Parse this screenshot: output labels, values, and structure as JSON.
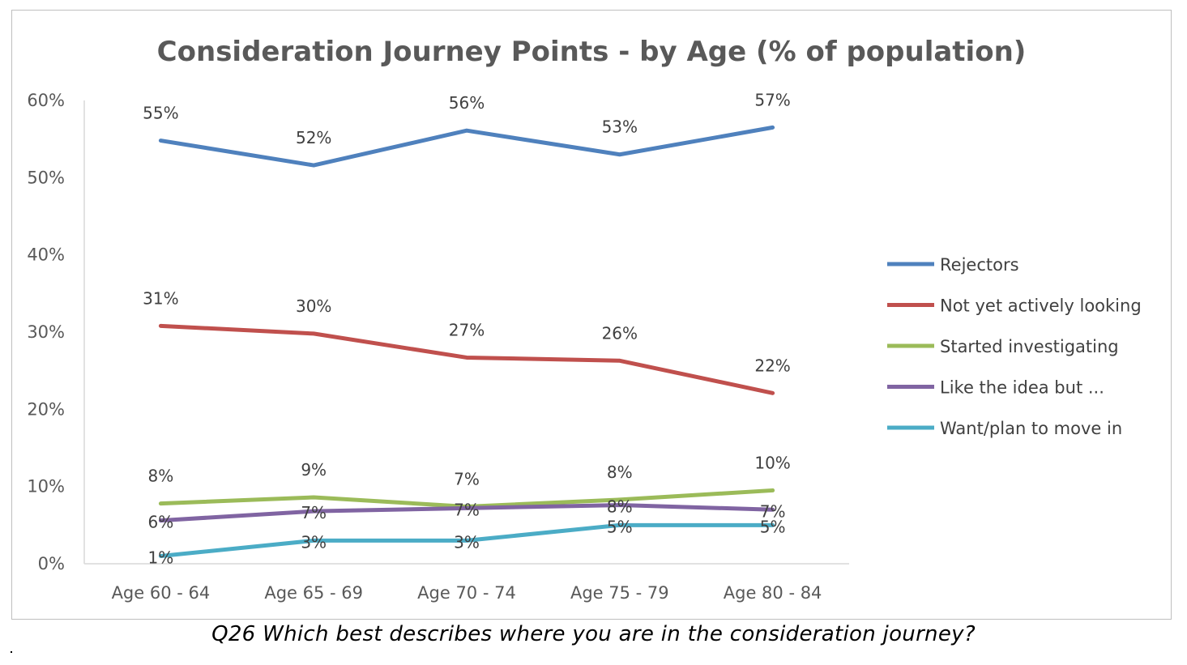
{
  "chart_data": {
    "type": "line",
    "title": "Consideration Journey Points - by Age (% of population)",
    "xlabel": "",
    "ylabel": "",
    "categories": [
      "Age 60 - 64",
      "Age 65 - 69",
      "Age 70 - 74",
      "Age 75 - 79",
      "Age 80 - 84"
    ],
    "y_ticks": [
      "0%",
      "10%",
      "20%",
      "30%",
      "40%",
      "50%",
      "60%"
    ],
    "ylim": [
      0,
      60
    ],
    "grid": false,
    "legend_position": "right",
    "series": [
      {
        "name": "Rejectors",
        "color": "#4f81bd",
        "values": [
          54.8,
          51.6,
          56.1,
          53.0,
          56.5
        ],
        "labels": [
          "55%",
          "52%",
          "56%",
          "53%",
          "57%"
        ]
      },
      {
        "name": "Not yet actively looking",
        "color": "#c0504d",
        "values": [
          30.8,
          29.8,
          26.7,
          26.3,
          22.1
        ],
        "labels": [
          "31%",
          "30%",
          "27%",
          "26%",
          "22%"
        ]
      },
      {
        "name": "Started investigating",
        "color": "#9bbb59",
        "values": [
          7.8,
          8.6,
          7.4,
          8.3,
          9.5
        ],
        "labels": [
          "8%",
          "9%",
          "7%",
          "8%",
          "10%"
        ]
      },
      {
        "name": "Like the idea but ...",
        "color": "#8064a2",
        "values": [
          5.6,
          6.8,
          7.2,
          7.6,
          7.0
        ],
        "labels": [
          "6%",
          "7%",
          "7%",
          "8%",
          "7%"
        ]
      },
      {
        "name": "Want/plan to move in",
        "color": "#4bacc6",
        "values": [
          1.0,
          3.0,
          3.0,
          5.0,
          5.0
        ],
        "labels": [
          "1%",
          "3%",
          "3%",
          "5%",
          "5%"
        ]
      }
    ]
  },
  "caption": "Q26 Which best describes where you are in the consideration journey?"
}
